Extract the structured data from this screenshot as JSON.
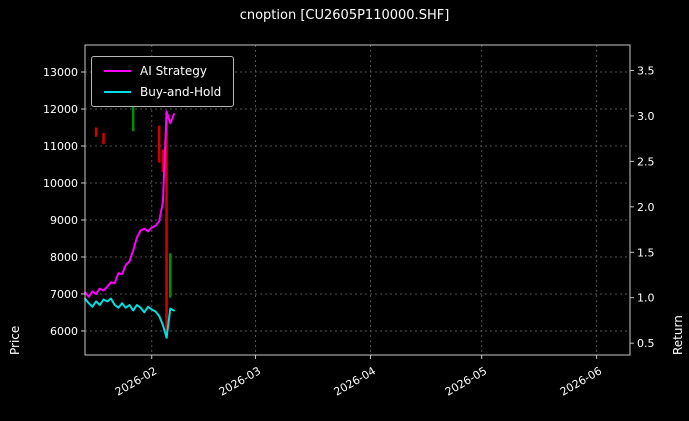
{
  "chart_data": {
    "type": "line",
    "title": "cnoption [CU2605P110000.SHF]",
    "xlabel": "",
    "left_axis": {
      "label": "Price",
      "ticks": [
        6000,
        7000,
        8000,
        9000,
        10000,
        11000,
        12000,
        13000
      ],
      "range": [
        5350,
        13730
      ]
    },
    "right_axis": {
      "label": "Return",
      "ticks": [
        0.5,
        1.0,
        1.5,
        2.0,
        2.5,
        3.0,
        3.5
      ],
      "range": [
        0.37,
        3.78
      ]
    },
    "x_range": [
      "2026-01-14",
      "2026-06-10"
    ],
    "x_ticks": [
      {
        "label": "2026-02",
        "date": "2026-02-01"
      },
      {
        "label": "2026-03",
        "date": "2026-03-01"
      },
      {
        "label": "2026-04",
        "date": "2026-04-01"
      },
      {
        "label": "2026-05",
        "date": "2026-05-01"
      },
      {
        "label": "2026-06",
        "date": "2026-06-01"
      }
    ],
    "grid": true,
    "legend": {
      "position": "upper-left"
    },
    "series": [
      {
        "name": "AI Strategy",
        "axis": "right",
        "color": "#ff00ff",
        "points": [
          [
            "2026-01-14",
            1.06
          ],
          [
            "2026-01-15",
            1.01
          ],
          [
            "2026-01-16",
            1.07
          ],
          [
            "2026-01-17",
            1.04
          ],
          [
            "2026-01-18",
            1.1
          ],
          [
            "2026-01-19",
            1.08
          ],
          [
            "2026-01-20",
            1.12
          ],
          [
            "2026-01-21",
            1.17
          ],
          [
            "2026-01-22",
            1.16
          ],
          [
            "2026-01-23",
            1.27
          ],
          [
            "2026-01-24",
            1.26
          ],
          [
            "2026-01-25",
            1.36
          ],
          [
            "2026-01-26",
            1.4
          ],
          [
            "2026-01-27",
            1.52
          ],
          [
            "2026-01-28",
            1.66
          ],
          [
            "2026-01-29",
            1.74
          ],
          [
            "2026-01-30",
            1.76
          ],
          [
            "2026-01-31",
            1.73
          ],
          [
            "2026-02-01",
            1.77
          ],
          [
            "2026-02-02",
            1.79
          ],
          [
            "2026-02-03",
            1.84
          ],
          [
            "2026-02-04",
            2.05
          ],
          [
            "2026-02-05",
            3.05
          ],
          [
            "2026-02-06",
            2.92
          ],
          [
            "2026-02-07",
            3.02
          ]
        ]
      },
      {
        "name": "Buy-and-Hold",
        "axis": "right",
        "color": "#00e0e0",
        "points": [
          [
            "2026-01-14",
            0.99
          ],
          [
            "2026-01-15",
            0.94
          ],
          [
            "2026-01-16",
            0.9
          ],
          [
            "2026-01-17",
            0.96
          ],
          [
            "2026-01-18",
            0.92
          ],
          [
            "2026-01-19",
            0.98
          ],
          [
            "2026-01-20",
            0.96
          ],
          [
            "2026-01-21",
            0.99
          ],
          [
            "2026-01-22",
            0.92
          ],
          [
            "2026-01-23",
            0.89
          ],
          [
            "2026-01-24",
            0.94
          ],
          [
            "2026-01-25",
            0.89
          ],
          [
            "2026-01-26",
            0.92
          ],
          [
            "2026-01-27",
            0.86
          ],
          [
            "2026-01-28",
            0.92
          ],
          [
            "2026-01-29",
            0.89
          ],
          [
            "2026-01-30",
            0.84
          ],
          [
            "2026-01-31",
            0.9
          ],
          [
            "2026-02-01",
            0.87
          ],
          [
            "2026-02-02",
            0.85
          ],
          [
            "2026-02-03",
            0.8
          ],
          [
            "2026-02-04",
            0.7
          ],
          [
            "2026-02-05",
            0.56
          ],
          [
            "2026-02-06",
            0.88
          ],
          [
            "2026-02-07",
            0.86
          ]
        ]
      }
    ],
    "candles": [
      {
        "date": "2026-01-17",
        "high": 11500,
        "low": 11250,
        "dir": "down"
      },
      {
        "date": "2026-01-19",
        "high": 11350,
        "low": 11050,
        "dir": "down"
      },
      {
        "date": "2026-01-27",
        "high": 12100,
        "low": 11400,
        "dir": "up"
      },
      {
        "date": "2026-02-03",
        "high": 11550,
        "low": 10550,
        "dir": "down"
      },
      {
        "date": "2026-02-04",
        "high": 10900,
        "low": 10300,
        "dir": "down"
      },
      {
        "date": "2026-02-05",
        "high": 11900,
        "low": 5800,
        "dir": "down"
      },
      {
        "date": "2026-02-06",
        "high": 8100,
        "low": 6900,
        "dir": "up"
      }
    ],
    "colors": {
      "background": "#000000",
      "text": "#ffffff",
      "grid": "#555555",
      "spine": "#c8c8c8",
      "candle_up": "#008f00",
      "candle_down": "#d40000"
    }
  }
}
